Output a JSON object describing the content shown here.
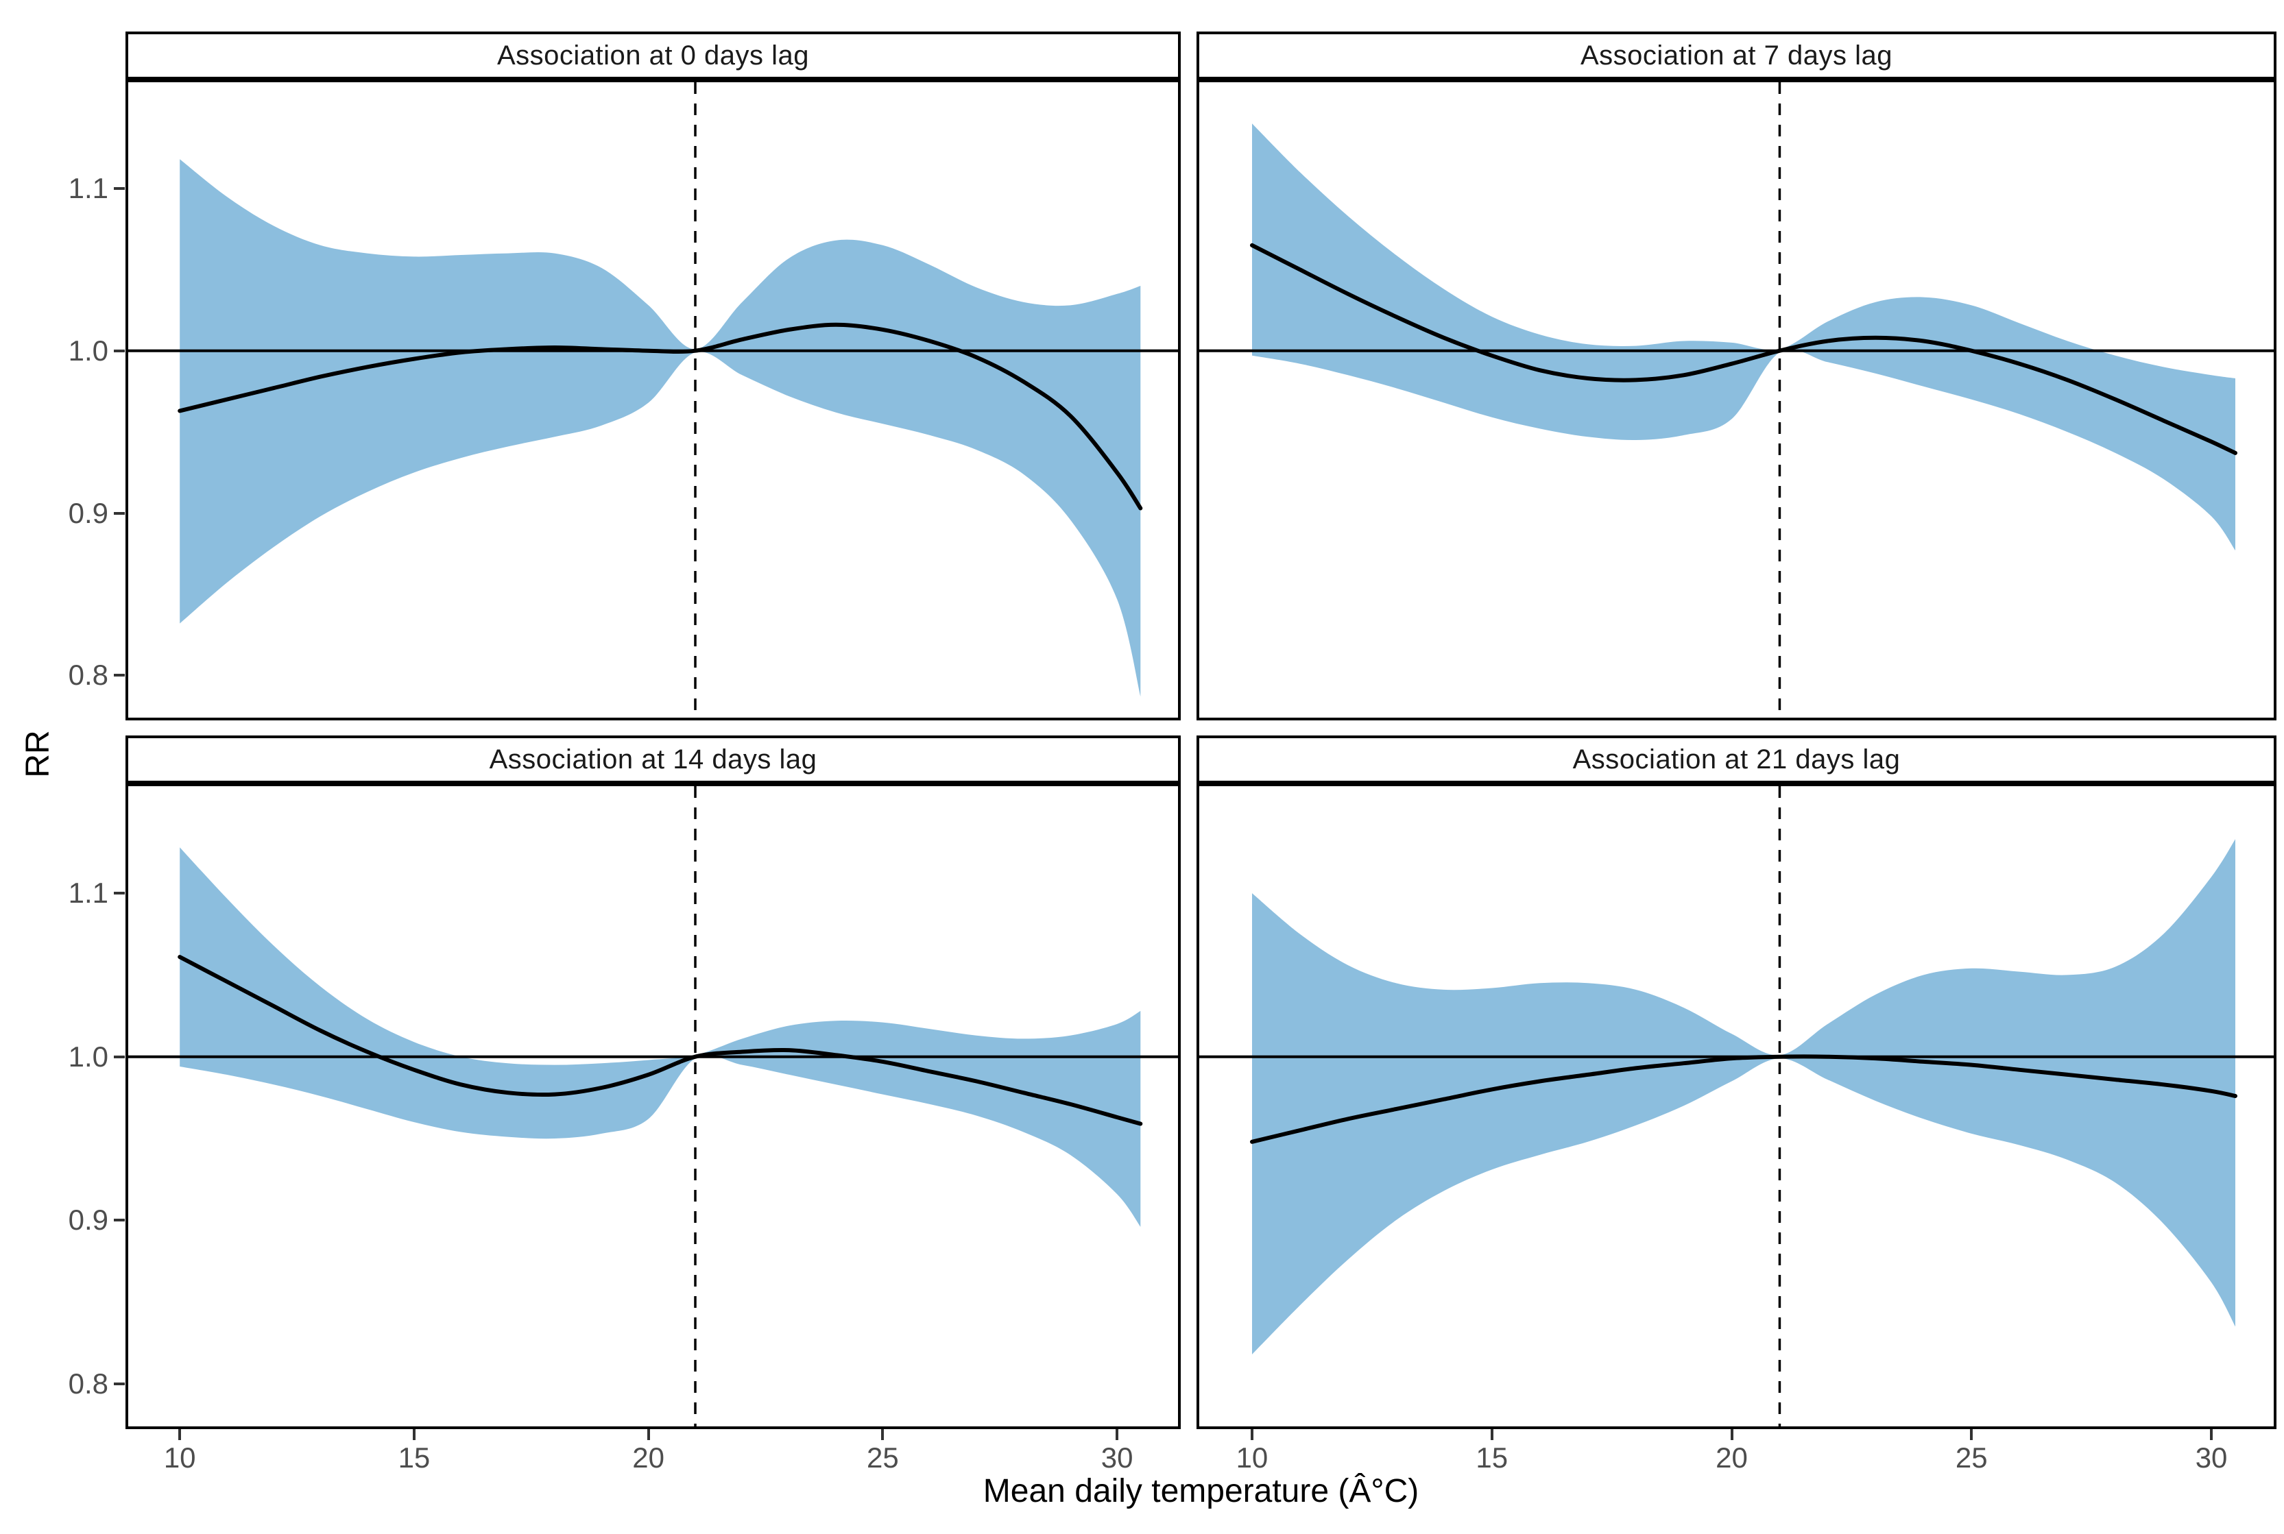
{
  "figure": {
    "background": "#ffffff"
  },
  "chart_data": {
    "type": "line",
    "xlabel": "Mean daily temperature (Â°C)",
    "ylabel": "RR",
    "x_ticks": [
      "10",
      "15",
      "20",
      "25",
      "30"
    ],
    "y_ticks": [
      "1.1",
      "1.0",
      "0.9",
      "0.8"
    ],
    "xlim": [
      8.9,
      31.3
    ],
    "ylim": [
      0.774,
      1.1654
    ],
    "grid": "off",
    "legend": "none",
    "reference_rr": 1.0,
    "dashed_vline_x": 21,
    "colors": {
      "ribbon": "#8CBEDE",
      "curve": "#000000",
      "reference_line": "#000000",
      "axis_text": "#4d4d4d",
      "strip_text": "#1a1a1a",
      "border": "#000000"
    },
    "x": [
      10,
      11,
      12,
      13,
      14,
      15,
      16,
      17,
      18,
      19,
      20,
      21,
      22,
      23,
      24,
      25,
      26,
      27,
      28,
      29,
      30,
      30.5
    ],
    "facets": [
      {
        "title": "Association at 0 days lag",
        "rr": [
          0.963,
          0.97,
          0.977,
          0.984,
          0.99,
          0.995,
          0.999,
          1.001,
          1.002,
          1.001,
          1.0,
          1.0,
          1.007,
          1.013,
          1.016,
          1.013,
          1.006,
          0.996,
          0.981,
          0.96,
          0.925,
          0.903
        ],
        "ci_upper": [
          1.118,
          1.095,
          1.077,
          1.065,
          1.06,
          1.058,
          1.059,
          1.06,
          1.06,
          1.051,
          1.028,
          1.001,
          1.03,
          1.057,
          1.068,
          1.065,
          1.053,
          1.039,
          1.03,
          1.028,
          1.035,
          1.04
        ],
        "ci_lower": [
          0.832,
          0.857,
          0.879,
          0.898,
          0.913,
          0.925,
          0.934,
          0.941,
          0.947,
          0.954,
          0.968,
          0.999,
          0.985,
          0.972,
          0.962,
          0.955,
          0.948,
          0.939,
          0.924,
          0.896,
          0.847,
          0.787
        ]
      },
      {
        "title": "Association at 7 days lag",
        "rr": [
          1.065,
          1.05,
          1.035,
          1.021,
          1.008,
          0.997,
          0.988,
          0.983,
          0.982,
          0.985,
          0.992,
          1.0,
          1.006,
          1.008,
          1.006,
          1.0,
          0.992,
          0.982,
          0.97,
          0.957,
          0.944,
          0.937
        ],
        "ci_upper": [
          1.14,
          1.11,
          1.083,
          1.059,
          1.038,
          1.021,
          1.01,
          1.004,
          1.003,
          1.006,
          1.005,
          1.001,
          1.018,
          1.03,
          1.033,
          1.028,
          1.017,
          1.006,
          0.997,
          0.99,
          0.985,
          0.983
        ],
        "ci_lower": [
          0.997,
          0.992,
          0.985,
          0.977,
          0.968,
          0.959,
          0.952,
          0.947,
          0.945,
          0.948,
          0.958,
          0.999,
          0.993,
          0.986,
          0.978,
          0.97,
          0.961,
          0.95,
          0.937,
          0.921,
          0.898,
          0.877
        ]
      },
      {
        "title": "Association at 14 days lag",
        "rr": [
          1.061,
          1.046,
          1.031,
          1.016,
          1.003,
          0.992,
          0.983,
          0.978,
          0.977,
          0.981,
          0.989,
          1.0,
          1.003,
          1.004,
          1.001,
          0.997,
          0.991,
          0.985,
          0.978,
          0.971,
          0.963,
          0.959
        ],
        "ci_upper": [
          1.128,
          1.097,
          1.068,
          1.043,
          1.023,
          1.009,
          1.0,
          0.996,
          0.995,
          0.996,
          0.998,
          1.001,
          1.011,
          1.019,
          1.022,
          1.021,
          1.017,
          1.013,
          1.011,
          1.013,
          1.02,
          1.028
        ],
        "ci_lower": [
          0.994,
          0.989,
          0.983,
          0.976,
          0.968,
          0.96,
          0.954,
          0.951,
          0.95,
          0.953,
          0.962,
          0.999,
          0.995,
          0.989,
          0.983,
          0.977,
          0.971,
          0.964,
          0.954,
          0.94,
          0.916,
          0.896
        ]
      },
      {
        "title": "Association at 21 days lag",
        "rr": [
          0.948,
          0.955,
          0.962,
          0.968,
          0.974,
          0.98,
          0.985,
          0.989,
          0.993,
          0.996,
          0.999,
          1.0,
          1.0,
          0.999,
          0.997,
          0.995,
          0.992,
          0.989,
          0.986,
          0.983,
          0.979,
          0.976
        ],
        "ci_upper": [
          1.1,
          1.075,
          1.056,
          1.045,
          1.041,
          1.042,
          1.045,
          1.045,
          1.041,
          1.03,
          1.014,
          1.001,
          1.02,
          1.038,
          1.05,
          1.054,
          1.052,
          1.05,
          1.055,
          1.075,
          1.11,
          1.133
        ],
        "ci_lower": [
          0.818,
          0.848,
          0.876,
          0.9,
          0.918,
          0.931,
          0.94,
          0.948,
          0.958,
          0.97,
          0.985,
          0.999,
          0.986,
          0.973,
          0.962,
          0.953,
          0.946,
          0.937,
          0.923,
          0.898,
          0.862,
          0.835
        ]
      }
    ]
  }
}
